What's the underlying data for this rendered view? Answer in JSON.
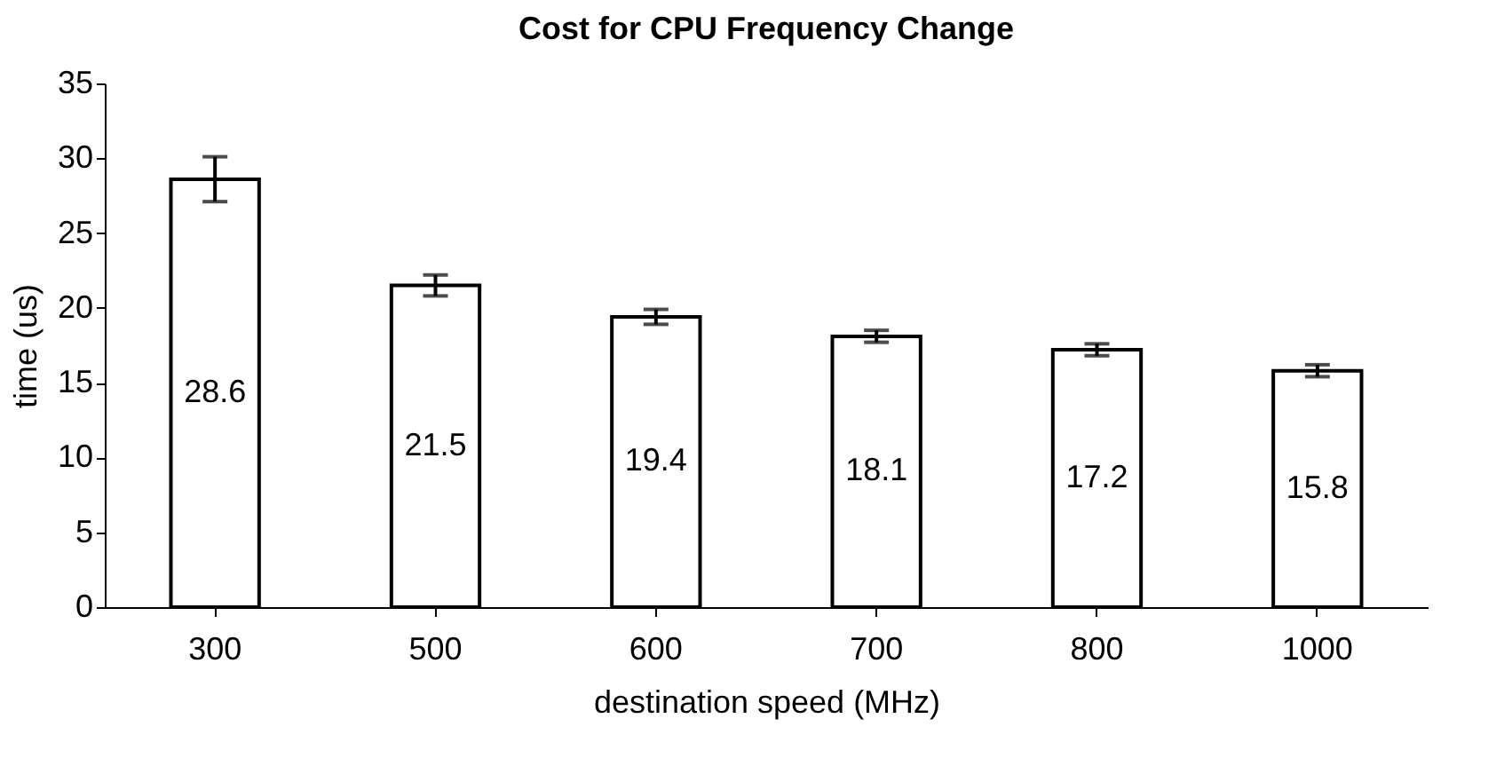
{
  "chart_data": {
    "type": "bar",
    "title": "Cost for CPU Frequency Change",
    "xlabel": "destination speed (MHz)",
    "ylabel": "time (us)",
    "categories": [
      "300",
      "500",
      "600",
      "700",
      "800",
      "1000"
    ],
    "values": [
      28.6,
      21.5,
      19.4,
      18.1,
      17.2,
      15.8
    ],
    "errors": [
      1.5,
      0.7,
      0.5,
      0.4,
      0.4,
      0.4
    ],
    "color": "#ffffff",
    "ylim": [
      0,
      35
    ],
    "yticks": [
      0,
      5,
      10,
      15,
      20,
      25,
      30,
      35
    ],
    "data_labels": true,
    "grid": false
  }
}
